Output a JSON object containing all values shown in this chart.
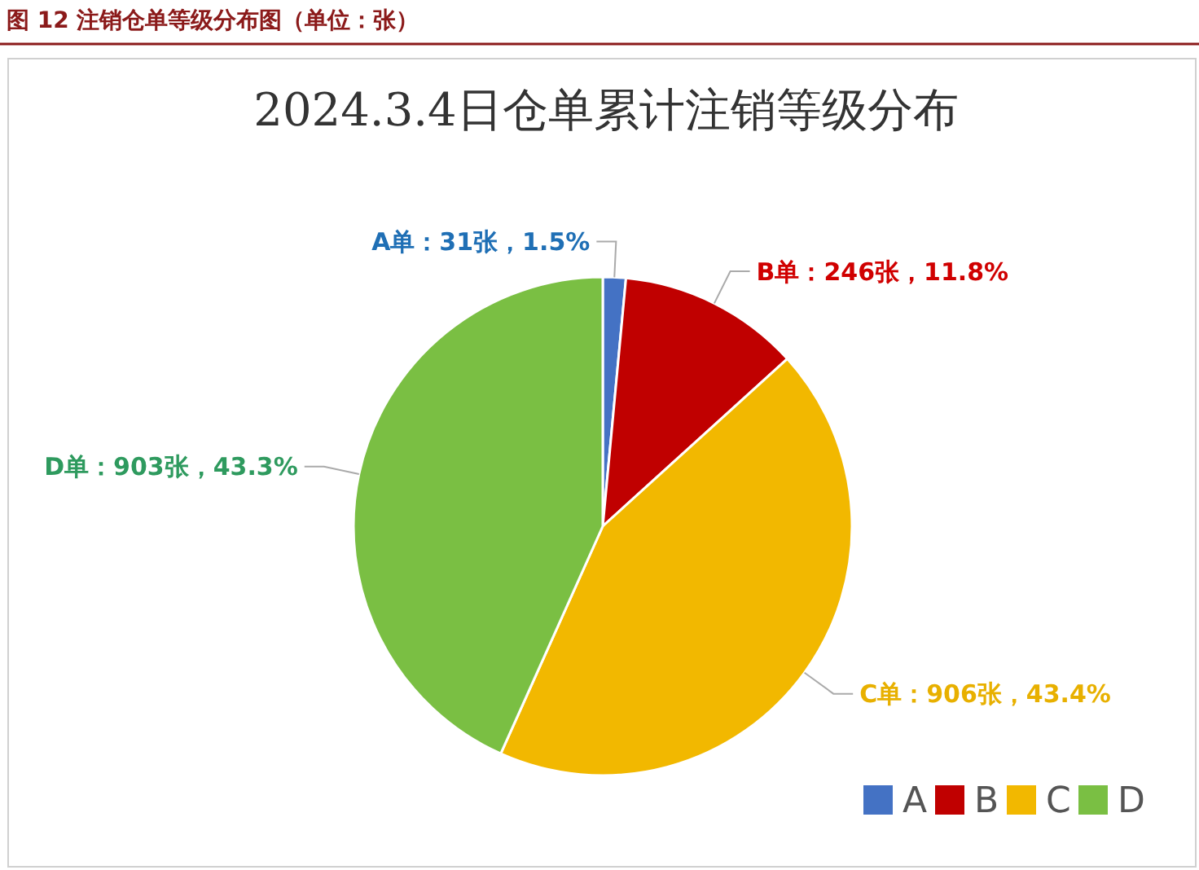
{
  "chart_data": {
    "type": "pie",
    "title": "2024.3.4日仓单累计注销等级分布",
    "annotations": [
      "图 12 注销仓单等级分布图（单位：张）"
    ],
    "categories": [
      "A",
      "B",
      "C",
      "D"
    ],
    "values": [
      31,
      246,
      906,
      903
    ],
    "colors": [
      "#4472c4",
      "#c00000",
      "#f2b800",
      "#7abf43"
    ],
    "value_labels": [
      "A单：31张，1.5%",
      "B单：246张，11.8%",
      "C单：906张，43.4%",
      "D单：903张，43.3%"
    ],
    "legend": "bottom right"
  }
}
